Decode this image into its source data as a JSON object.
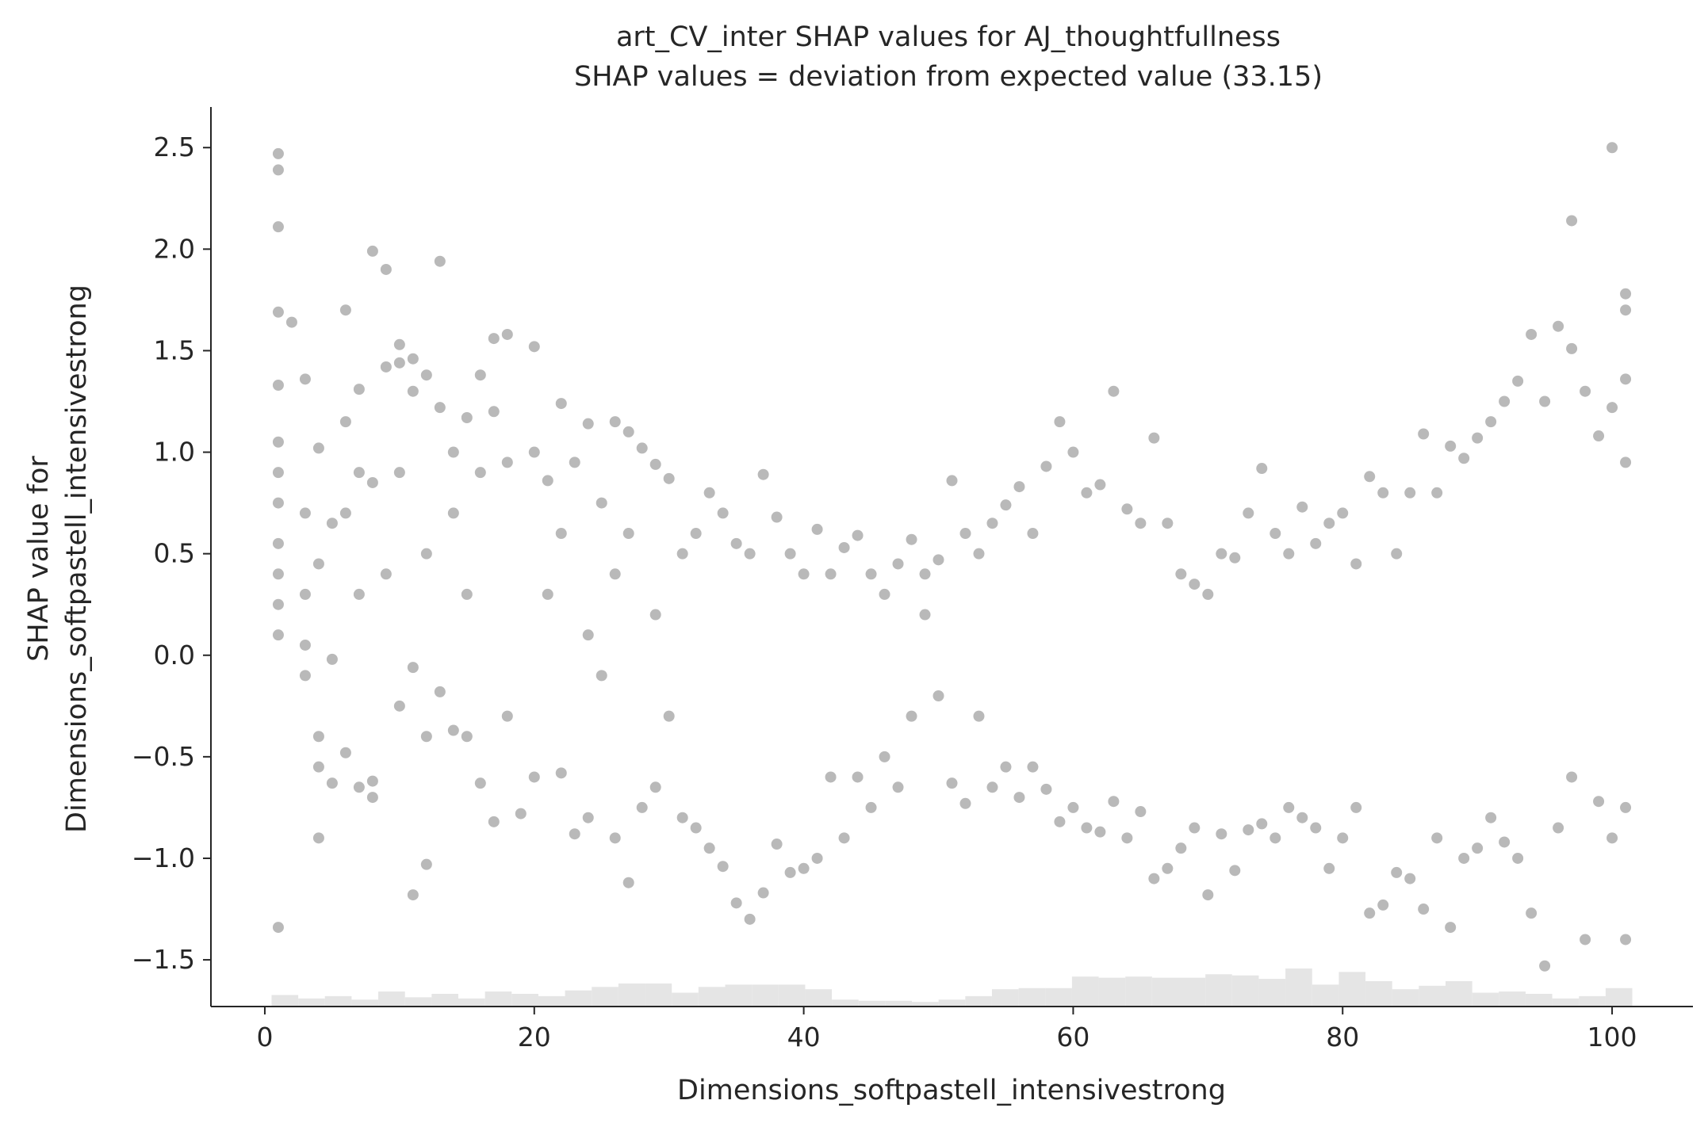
{
  "chart_data": {
    "type": "scatter",
    "title": "art_CV_inter SHAP values for AJ_thoughtfullness",
    "subtitle": "SHAP values = deviation from expected value (33.15)",
    "xlabel": "Dimensions_softpastell_intensivestrong",
    "ylabel_line1": "SHAP value for",
    "ylabel_line2": "Dimensions_softpastell_intensivestrong",
    "xlim": [
      -4,
      106
    ],
    "ylim": [
      -1.73,
      2.7
    ],
    "xticks": [
      0,
      20,
      40,
      60,
      80,
      100
    ],
    "xtick_labels": [
      "0",
      "20",
      "40",
      "60",
      "80",
      "100"
    ],
    "yticks": [
      2.5,
      2.0,
      1.5,
      1.0,
      0.5,
      0.0,
      -0.5,
      -1.0,
      -1.5
    ],
    "ytick_labels": [
      "2.5",
      "2.0",
      "1.5",
      "1.0",
      "0.5",
      "0.0",
      "−0.5",
      "−1.0",
      "−1.5"
    ],
    "grid": false,
    "legend": "none",
    "point_color": "#7f7f7f",
    "histogram_color": "#e5e5e5",
    "axis_color": "#262626",
    "histogram_counts": [
      1.0,
      0.7,
      0.9,
      0.6,
      1.3,
      0.8,
      1.1,
      0.7,
      1.3,
      1.1,
      0.9,
      1.4,
      1.7,
      2.0,
      2.0,
      1.2,
      1.7,
      1.9,
      1.9,
      1.9,
      1.5,
      0.6,
      0.5,
      0.5,
      0.4,
      0.6,
      0.9,
      1.5,
      1.6,
      1.6,
      2.6,
      2.5,
      2.6,
      2.5,
      2.5,
      2.8,
      2.7,
      2.4,
      3.3,
      1.9,
      3.0,
      2.2,
      1.5,
      1.8,
      2.2,
      1.2,
      1.3,
      1.1,
      0.7,
      0.9,
      1.6
    ],
    "series": [
      {
        "points": [
          [
            1,
            2.47
          ],
          [
            1,
            2.39
          ],
          [
            1,
            2.11
          ],
          [
            1,
            1.69
          ],
          [
            2,
            1.64
          ],
          [
            1,
            1.33
          ],
          [
            1,
            1.05
          ],
          [
            1,
            0.9
          ],
          [
            1,
            0.75
          ],
          [
            1,
            0.55
          ],
          [
            1,
            0.4
          ],
          [
            1,
            0.25
          ],
          [
            1,
            0.1
          ],
          [
            1,
            -1.34
          ],
          [
            3,
            1.36
          ],
          [
            3,
            0.7
          ],
          [
            3,
            0.3
          ],
          [
            3,
            0.05
          ],
          [
            3,
            -0.1
          ],
          [
            4,
            1.02
          ],
          [
            4,
            0.45
          ],
          [
            4,
            -0.4
          ],
          [
            4,
            -0.55
          ],
          [
            4,
            -0.9
          ],
          [
            5,
            0.65
          ],
          [
            5,
            -0.02
          ],
          [
            5,
            -0.63
          ],
          [
            6,
            1.7
          ],
          [
            6,
            1.15
          ],
          [
            6,
            0.7
          ],
          [
            6,
            -0.48
          ],
          [
            7,
            1.31
          ],
          [
            7,
            0.9
          ],
          [
            7,
            0.3
          ],
          [
            7,
            -0.65
          ],
          [
            8,
            1.99
          ],
          [
            8,
            0.85
          ],
          [
            8,
            -0.62
          ],
          [
            8,
            -0.7
          ],
          [
            9,
            1.9
          ],
          [
            9,
            1.42
          ],
          [
            9,
            0.4
          ],
          [
            10,
            1.53
          ],
          [
            10,
            1.44
          ],
          [
            10,
            0.9
          ],
          [
            10,
            -0.25
          ],
          [
            11,
            1.46
          ],
          [
            11,
            1.3
          ],
          [
            11,
            -0.06
          ],
          [
            11,
            -1.18
          ],
          [
            12,
            1.38
          ],
          [
            12,
            0.5
          ],
          [
            12,
            -0.4
          ],
          [
            12,
            -1.03
          ],
          [
            13,
            1.94
          ],
          [
            13,
            1.22
          ],
          [
            13,
            -0.18
          ],
          [
            14,
            1.0
          ],
          [
            14,
            0.7
          ],
          [
            14,
            -0.37
          ],
          [
            15,
            1.17
          ],
          [
            15,
            0.3
          ],
          [
            15,
            -0.4
          ],
          [
            16,
            1.38
          ],
          [
            16,
            0.9
          ],
          [
            16,
            -0.63
          ],
          [
            17,
            1.56
          ],
          [
            17,
            1.2
          ],
          [
            17,
            -0.82
          ],
          [
            18,
            1.58
          ],
          [
            18,
            0.95
          ],
          [
            18,
            -0.3
          ],
          [
            19,
            -0.78
          ],
          [
            20,
            1.52
          ],
          [
            20,
            1.0
          ],
          [
            20,
            -0.6
          ],
          [
            21,
            0.86
          ],
          [
            21,
            0.3
          ],
          [
            22,
            1.24
          ],
          [
            22,
            0.6
          ],
          [
            22,
            -0.58
          ],
          [
            23,
            0.95
          ],
          [
            23,
            -0.88
          ],
          [
            24,
            1.14
          ],
          [
            24,
            0.1
          ],
          [
            24,
            -0.8
          ],
          [
            25,
            0.75
          ],
          [
            25,
            -0.1
          ],
          [
            26,
            1.15
          ],
          [
            26,
            0.4
          ],
          [
            26,
            -0.9
          ],
          [
            27,
            1.1
          ],
          [
            27,
            0.6
          ],
          [
            27,
            -1.12
          ],
          [
            28,
            1.02
          ],
          [
            28,
            -0.75
          ],
          [
            29,
            0.94
          ],
          [
            29,
            0.2
          ],
          [
            29,
            -0.65
          ],
          [
            30,
            0.87
          ],
          [
            30,
            -0.3
          ],
          [
            31,
            0.5
          ],
          [
            31,
            -0.8
          ],
          [
            32,
            0.6
          ],
          [
            32,
            -0.85
          ],
          [
            33,
            0.8
          ],
          [
            33,
            -0.95
          ],
          [
            34,
            0.7
          ],
          [
            34,
            -1.04
          ],
          [
            35,
            0.55
          ],
          [
            35,
            -1.22
          ],
          [
            36,
            0.5
          ],
          [
            36,
            -1.3
          ],
          [
            37,
            0.89
          ],
          [
            37,
            -1.17
          ],
          [
            38,
            0.68
          ],
          [
            38,
            -0.93
          ],
          [
            39,
            0.5
          ],
          [
            39,
            -1.07
          ],
          [
            40,
            0.4
          ],
          [
            40,
            -1.05
          ],
          [
            41,
            0.62
          ],
          [
            41,
            -1.0
          ],
          [
            42,
            0.4
          ],
          [
            42,
            -0.6
          ],
          [
            43,
            0.53
          ],
          [
            43,
            -0.9
          ],
          [
            44,
            0.59
          ],
          [
            44,
            -0.6
          ],
          [
            45,
            0.4
          ],
          [
            45,
            -0.75
          ],
          [
            46,
            0.3
          ],
          [
            46,
            -0.5
          ],
          [
            47,
            0.45
          ],
          [
            47,
            -0.65
          ],
          [
            48,
            0.57
          ],
          [
            48,
            -0.3
          ],
          [
            49,
            0.4
          ],
          [
            49,
            0.2
          ],
          [
            50,
            0.47
          ],
          [
            50,
            -0.2
          ],
          [
            51,
            0.86
          ],
          [
            51,
            -0.63
          ],
          [
            52,
            0.6
          ],
          [
            52,
            -0.73
          ],
          [
            53,
            0.5
          ],
          [
            53,
            -0.3
          ],
          [
            54,
            0.65
          ],
          [
            54,
            -0.65
          ],
          [
            55,
            0.74
          ],
          [
            55,
            -0.55
          ],
          [
            56,
            0.83
          ],
          [
            56,
            -0.7
          ],
          [
            57,
            0.6
          ],
          [
            57,
            -0.55
          ],
          [
            58,
            0.93
          ],
          [
            58,
            -0.66
          ],
          [
            59,
            1.15
          ],
          [
            59,
            -0.82
          ],
          [
            60,
            1.0
          ],
          [
            60,
            -0.75
          ],
          [
            61,
            0.8
          ],
          [
            61,
            -0.85
          ],
          [
            62,
            0.84
          ],
          [
            62,
            -0.87
          ],
          [
            63,
            1.3
          ],
          [
            63,
            -0.72
          ],
          [
            64,
            0.72
          ],
          [
            64,
            -0.9
          ],
          [
            65,
            0.65
          ],
          [
            65,
            -0.77
          ],
          [
            66,
            1.07
          ],
          [
            66,
            -1.1
          ],
          [
            67,
            0.65
          ],
          [
            67,
            -1.05
          ],
          [
            68,
            0.4
          ],
          [
            68,
            -0.95
          ],
          [
            69,
            0.35
          ],
          [
            69,
            -0.85
          ],
          [
            70,
            0.3
          ],
          [
            70,
            -1.18
          ],
          [
            71,
            0.5
          ],
          [
            71,
            -0.88
          ],
          [
            72,
            0.48
          ],
          [
            72,
            -1.06
          ],
          [
            73,
            0.7
          ],
          [
            73,
            -0.86
          ],
          [
            74,
            0.92
          ],
          [
            74,
            -0.83
          ],
          [
            75,
            0.6
          ],
          [
            75,
            -0.9
          ],
          [
            76,
            0.5
          ],
          [
            76,
            -0.75
          ],
          [
            77,
            0.73
          ],
          [
            77,
            -0.8
          ],
          [
            78,
            0.55
          ],
          [
            78,
            -0.85
          ],
          [
            79,
            0.65
          ],
          [
            79,
            -1.05
          ],
          [
            80,
            0.7
          ],
          [
            80,
            -0.9
          ],
          [
            81,
            0.45
          ],
          [
            81,
            -0.75
          ],
          [
            82,
            0.88
          ],
          [
            82,
            -1.27
          ],
          [
            83,
            0.8
          ],
          [
            83,
            -1.23
          ],
          [
            84,
            0.5
          ],
          [
            84,
            -1.07
          ],
          [
            85,
            0.8
          ],
          [
            85,
            -1.1
          ],
          [
            86,
            1.09
          ],
          [
            86,
            -1.25
          ],
          [
            87,
            0.8
          ],
          [
            87,
            -0.9
          ],
          [
            88,
            1.03
          ],
          [
            88,
            -1.34
          ],
          [
            89,
            0.97
          ],
          [
            89,
            -1.0
          ],
          [
            90,
            1.07
          ],
          [
            90,
            -0.95
          ],
          [
            91,
            1.15
          ],
          [
            91,
            -0.8
          ],
          [
            92,
            1.25
          ],
          [
            92,
            -0.92
          ],
          [
            93,
            1.35
          ],
          [
            93,
            -1.0
          ],
          [
            94,
            1.58
          ],
          [
            94,
            -1.27
          ],
          [
            95,
            1.25
          ],
          [
            95,
            -1.53
          ],
          [
            96,
            1.62
          ],
          [
            96,
            -0.85
          ],
          [
            97,
            2.14
          ],
          [
            97,
            1.51
          ],
          [
            97,
            -0.6
          ],
          [
            98,
            1.3
          ],
          [
            98,
            -1.4
          ],
          [
            99,
            1.08
          ],
          [
            99,
            -0.72
          ],
          [
            100,
            2.5
          ],
          [
            100,
            1.22
          ],
          [
            100,
            -0.9
          ],
          [
            101,
            1.78
          ],
          [
            101,
            1.7
          ],
          [
            101,
            1.36
          ],
          [
            101,
            0.95
          ],
          [
            101,
            -0.75
          ],
          [
            101,
            -1.4
          ]
        ]
      }
    ]
  }
}
